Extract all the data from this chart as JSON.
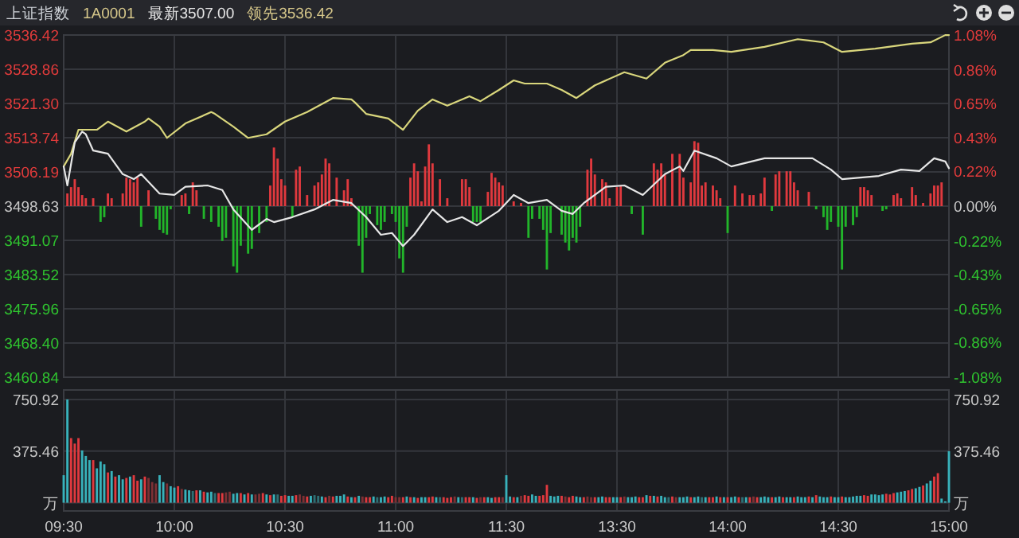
{
  "chart_data": [
    {
      "type": "line",
      "title": "上证指数",
      "subtitle": "1A0001",
      "annotations": [
        "最新3507.00",
        "领先3536.42"
      ],
      "categories": [
        null,
        null,
        null,
        null,
        null,
        null,
        null,
        null,
        null,
        null,
        null,
        null,
        null,
        null,
        null,
        null,
        null,
        null,
        null,
        null,
        null,
        null,
        null,
        null,
        null,
        null,
        null,
        null,
        null,
        null,
        null,
        null,
        null,
        null,
        null,
        null,
        null,
        null,
        null,
        null,
        null,
        null,
        null,
        null,
        null,
        null,
        null,
        null,
        null,
        null,
        null,
        null,
        null,
        null,
        null,
        null,
        null,
        null,
        null,
        null,
        null,
        null,
        null,
        null,
        null,
        null,
        null,
        null,
        null,
        null,
        null,
        null,
        null,
        null,
        null,
        null,
        null,
        null,
        null,
        null,
        null,
        null,
        null,
        null,
        null,
        null,
        null,
        null,
        null,
        null,
        null,
        null,
        null,
        null,
        null,
        null,
        null,
        null,
        null,
        null,
        null,
        null,
        null,
        null,
        null,
        null,
        null,
        null,
        null,
        null,
        null,
        null,
        null,
        null,
        null,
        null,
        null,
        null,
        null,
        null,
        null,
        null,
        null,
        null,
        null,
        null,
        null,
        null,
        null,
        null,
        null,
        null,
        null,
        null,
        null,
        null,
        null,
        null,
        null,
        null,
        null,
        null,
        null,
        null,
        null,
        null,
        null,
        null,
        null,
        null,
        null,
        null,
        null,
        null,
        null,
        null,
        null,
        null,
        null,
        null,
        null,
        null,
        null,
        null,
        null,
        null,
        null,
        null,
        null,
        null,
        null,
        null,
        null,
        null,
        null,
        null,
        null,
        null,
        null,
        null,
        null,
        null,
        null,
        null,
        null,
        null,
        null,
        null,
        null,
        null,
        null,
        null,
        null,
        null,
        null,
        null,
        null,
        null,
        null,
        null,
        null,
        null,
        null,
        null,
        null,
        null,
        null,
        null,
        null,
        null,
        null,
        null,
        null,
        null,
        null,
        null,
        null,
        null,
        null,
        null,
        null,
        null,
        null,
        null,
        null,
        null,
        null,
        null,
        null,
        null,
        null,
        null,
        null,
        null,
        null,
        null,
        null,
        null,
        null,
        null,
        null
      ],
      "ylim": [
        3460.84,
        3536.42
      ],
      "yticks": [
        3536.42,
        3528.86,
        {
          "value": 3521.3,
          "label": "3521.30"
        },
        3513.74,
        3506.19,
        3498.63,
        3491.07,
        3483.52,
        3475.96,
        {
          "value": 3468.4,
          "label": "3468.40"
        },
        3460.84
      ],
      "y2lim": [
        -1.08,
        1.08
      ],
      "y2ticks": [
        {
          "value": 1.08,
          "label": "1.08%"
        },
        {
          "value": 0.86,
          "label": "0.86%"
        },
        {
          "value": 0.65,
          "label": "0.65%"
        },
        {
          "value": 0.43,
          "label": "0.43%"
        },
        {
          "value": 0.22,
          "label": "0.22%"
        },
        {
          "value": 0,
          "label": "0.00%"
        },
        {
          "value": -0.22,
          "label": "-0.22%"
        },
        {
          "value": -0.43,
          "label": "-0.43%"
        },
        {
          "value": -0.65,
          "label": "-0.65%"
        },
        {
          "value": -0.86,
          "label": "-0.86%"
        },
        {
          "value": -1.08,
          "label": "-1.08%"
        }
      ],
      "tick_labels": "y",
      "grid": true,
      "series": [
        {
          "type": "bar",
          "axis": "y2",
          "color": "#e0393e",
          "values": [
            null,
            0.08,
            0.12,
            0.17,
            0.12,
            0.07,
            0.05,
            null,
            0.05,
            null,
            null,
            null,
            0.08,
            0.05,
            null,
            null,
            0.08,
            0.18,
            0.17,
            0.15,
            0.18,
            null,
            null,
            0.1,
            null,
            null,
            null,
            null,
            null,
            null,
            null,
            null,
            0.07,
            0.08,
            null,
            0.15,
            0.1,
            null,
            null,
            null,
            null,
            null,
            null,
            null,
            null,
            null,
            null,
            null,
            null,
            null,
            null,
            null,
            null,
            null,
            null,
            null,
            0.13,
            0.37,
            0.3,
            0.17,
            0.13,
            null,
            null,
            0.23,
            0.25,
            null,
            0.07,
            null,
            0.13,
            0.15,
            0.2,
            0.3,
            0.27,
            null,
            0.18,
            null,
            0.1,
            0.17,
            0.05,
            null,
            null,
            null,
            null,
            null,
            null,
            null,
            null,
            null,
            null,
            null,
            null,
            null,
            null,
            null,
            0.18,
            0.27,
            0.22,
            0.03,
            0.25,
            0.39,
            0.27,
            null,
            0.17,
            null,
            0.05,
            null,
            null,
            null,
            0.17,
            0.17,
            0.12,
            null,
            null,
            null,
            null,
            0.09,
            0.21,
            0.18,
            0.15,
            0.13,
            null,
            null,
            0.03,
            null,
            0.02,
            null,
            null,
            null,
            null,
            null,
            null,
            null,
            null,
            null,
            null,
            null,
            null,
            null,
            null,
            null,
            null,
            null,
            0.23,
            0.3,
            0.2,
            null,
            0.17,
            0.15,
            0.05,
            null,
            0.12,
            0.13,
            null,
            null,
            null,
            null,
            null,
            null,
            null,
            null,
            0.27,
            0.23,
            0.27,
            0.2,
            null,
            0.33,
            null,
            0.33,
            0.18,
            null,
            0.15,
            0.41,
            0.4,
            0.13,
            0.15,
            null,
            0.13,
            0.1,
            0.05,
            null,
            null,
            null,
            0.13,
            null,
            0.08,
            null,
            0.07,
            0.07,
            null,
            0.08,
            0.18,
            null,
            null,
            0.2,
            0.22,
            null,
            0.22,
            0.22,
            0.15,
            0.1,
            null,
            null,
            0.09,
            null,
            null,
            null,
            null,
            null,
            null,
            null,
            null,
            null,
            null,
            null,
            null,
            null,
            0.12,
            0.12,
            0.1,
            0.07,
            null,
            null,
            null,
            null,
            null,
            0.07,
            0.08,
            0.05,
            null,
            null,
            0.12,
            0.07,
            null,
            0.02,
            null,
            0.08,
            0.13,
            0.13,
            0.15,
            null,
            null
          ]
        },
        {
          "type": "bar",
          "axis": "y2",
          "color": "#22b52a",
          "values": [
            null,
            null,
            null,
            null,
            null,
            null,
            null,
            null,
            null,
            null,
            -0.1,
            -0.07,
            null,
            null,
            null,
            null,
            null,
            null,
            null,
            null,
            null,
            -0.13,
            null,
            null,
            null,
            -0.08,
            -0.15,
            -0.17,
            -0.18,
            -0.02,
            null,
            null,
            null,
            null,
            -0.05,
            null,
            null,
            null,
            -0.08,
            null,
            -0.1,
            null,
            -0.13,
            -0.22,
            -0.2,
            null,
            -0.38,
            -0.42,
            -0.25,
            null,
            -0.3,
            -0.27,
            null,
            -0.17,
            null,
            -0.1,
            null,
            null,
            null,
            null,
            null,
            null,
            -0.07,
            null,
            null,
            null,
            null,
            null,
            null,
            null,
            null,
            null,
            null,
            null,
            null,
            null,
            null,
            null,
            null,
            null,
            -0.25,
            -0.42,
            -0.2,
            -0.05,
            null,
            -0.12,
            -0.15,
            -0.1,
            null,
            -0.05,
            -0.1,
            -0.33,
            -0.42,
            -0.13,
            null,
            null,
            null,
            null,
            null,
            null,
            null,
            null,
            null,
            null,
            null,
            null,
            null,
            null,
            null,
            null,
            null,
            -0.1,
            -0.1,
            -0.1,
            null,
            null,
            null,
            null,
            null,
            null,
            null,
            null,
            null,
            null,
            null,
            null,
            -0.2,
            -0.08,
            null,
            -0.08,
            -0.15,
            -0.4,
            -0.17,
            null,
            null,
            -0.18,
            -0.23,
            -0.28,
            -0.2,
            -0.23,
            -0.13,
            null,
            null,
            null,
            null,
            null,
            null,
            null,
            null,
            null,
            null,
            null,
            null,
            null,
            -0.05,
            null,
            null,
            -0.18,
            null,
            null,
            null,
            null,
            null,
            null,
            null,
            null,
            null,
            null,
            null,
            null,
            null,
            null,
            null,
            null,
            null,
            null,
            null,
            null,
            null,
            null,
            -0.17,
            null,
            null,
            null,
            null,
            null,
            null,
            null,
            null,
            null,
            null,
            null,
            -0.03,
            null,
            null,
            null,
            null,
            null,
            null,
            null,
            null,
            null,
            null,
            null,
            -0.02,
            null,
            -0.07,
            -0.15,
            -0.1,
            null,
            -0.13,
            -0.4,
            -0.13,
            null,
            -0.12,
            -0.07,
            null,
            null,
            null,
            null,
            null,
            null,
            -0.03,
            -0.02,
            null,
            null,
            null,
            null,
            null,
            null,
            null,
            null,
            null,
            null,
            null,
            null,
            null,
            null,
            null,
            null,
            null
          ]
        },
        {
          "color": "#d9d67c",
          "values": [
            3507.4,
            null,
            3510.2,
            null,
            3515.5,
            null,
            null,
            null,
            null,
            3515.5,
            null,
            null,
            3517.3,
            null,
            null,
            null,
            null,
            3515.1,
            null,
            null,
            null,
            null,
            3517.3,
            3518.0,
            null,
            null,
            3516.2,
            null,
            3513.7,
            null,
            null,
            null,
            null,
            3516.9,
            null,
            null,
            null,
            null,
            null,
            null,
            3519.4,
            3519.0,
            null,
            null,
            null,
            null,
            3516.2,
            null,
            null,
            null,
            3513.7,
            null,
            null,
            null,
            null,
            3514.5,
            null,
            null,
            null,
            null,
            3517.3,
            null,
            null,
            null,
            null,
            null,
            3519.4,
            null,
            null,
            null,
            null,
            null,
            null,
            3522.5,
            null,
            null,
            null,
            null,
            3522.2,
            3521.5,
            null,
            null,
            3519.0,
            null,
            null,
            null,
            null,
            null,
            3518.0,
            null,
            null,
            null,
            3515.5,
            null,
            null,
            null,
            3519.7,
            null,
            null,
            null,
            3522.2,
            null,
            null,
            null,
            3520.8,
            null,
            null,
            null,
            null,
            null,
            3522.9,
            null,
            null,
            3521.8,
            null,
            null,
            null,
            null,
            3524.3,
            null,
            null,
            null,
            3526.4,
            null,
            null,
            3525.7,
            null,
            null,
            null,
            null,
            null,
            3525.7,
            null,
            null,
            null,
            3524.3,
            null,
            null,
            null,
            3522.5,
            null,
            null,
            null,
            null,
            3525.3,
            null,
            null,
            null,
            null,
            null,
            null,
            null,
            3528.2,
            null,
            null,
            null,
            null,
            null,
            3526.8,
            null,
            null,
            null,
            null,
            3530.3,
            null,
            null,
            null,
            null,
            3532.0,
            null,
            3533.1,
            null,
            null,
            null,
            null,
            null,
            3533.1,
            null,
            null,
            null,
            null,
            3532.7,
            null,
            null,
            null,
            null,
            null,
            null,
            null,
            null,
            3533.8,
            null,
            null,
            null,
            null,
            null,
            null,
            null,
            null,
            3535.5,
            null,
            null,
            null,
            null,
            null,
            null,
            3534.8,
            null,
            null,
            null,
            null,
            3532.7,
            null,
            null,
            null,
            null,
            null,
            null,
            null,
            null,
            3533.4,
            null,
            null,
            null,
            null,
            null,
            null,
            null,
            null,
            null,
            3534.5,
            null,
            null,
            null,
            null,
            3534.8,
            null,
            null,
            null,
            3536.4,
            3536.4
          ]
        },
        {
          "color": "#e6e6e6",
          "values": [
            3507.4,
            3503.2,
            null,
            3512.7,
            null,
            3515.1,
            3514.5,
            null,
            3510.9,
            null,
            null,
            null,
            3510.2,
            null,
            null,
            null,
            3505.7,
            null,
            null,
            3504.6,
            null,
            3505.7,
            null,
            null,
            null,
            null,
            3501.4,
            null,
            null,
            null,
            3501.1,
            null,
            null,
            3502.9,
            null,
            null,
            null,
            null,
            null,
            3503.2,
            null,
            null,
            null,
            3502.2,
            null,
            null,
            3497.9,
            null,
            null,
            null,
            null,
            3493.4,
            null,
            null,
            null,
            3495.8,
            null,
            3495.1,
            null,
            null,
            null,
            null,
            3496.2,
            null,
            null,
            null,
            null,
            null,
            3497.9,
            null,
            null,
            null,
            null,
            3500.0,
            null,
            null,
            null,
            null,
            3499.3,
            null,
            null,
            null,
            3496.2,
            null,
            null,
            null,
            3492.3,
            null,
            null,
            3492.7,
            null,
            null,
            3489.8,
            null,
            null,
            3492.3,
            null,
            null,
            null,
            null,
            3497.9,
            null,
            null,
            null,
            3495.1,
            null,
            null,
            null,
            3496.2,
            null,
            null,
            null,
            3494.4,
            null,
            null,
            null,
            null,
            null,
            3497.6,
            null,
            null,
            null,
            3501.1,
            null,
            null,
            null,
            3499.3,
            null,
            null,
            null,
            null,
            3500.0,
            null,
            null,
            null,
            3497.6,
            null,
            null,
            3496.9,
            null,
            null,
            3499.3,
            null,
            null,
            null,
            null,
            null,
            3502.9,
            null,
            null,
            null,
            null,
            3503.2,
            null,
            null,
            null,
            null,
            3501.1,
            null,
            null,
            null,
            null,
            null,
            3505.7,
            null,
            null,
            null,
            3507.4,
            3506.4,
            null,
            null,
            3510.9,
            null,
            null,
            null,
            null,
            null,
            3509.2,
            null,
            null,
            null,
            3507.4,
            null,
            null,
            null,
            null,
            null,
            null,
            null,
            null,
            3509.2,
            null,
            null,
            null,
            null,
            null,
            null,
            null,
            null,
            null,
            null,
            null,
            null,
            3509.2,
            null,
            null,
            null,
            null,
            3506.7,
            null,
            null,
            3504.6,
            null,
            null,
            null,
            null,
            null,
            null,
            null,
            null,
            null,
            3505.3,
            null,
            null,
            null,
            null,
            null,
            3506.7,
            null,
            null,
            null,
            null,
            3506.4,
            null,
            null,
            null,
            3509.2,
            null,
            null,
            3508.5,
            3507.0
          ]
        }
      ]
    },
    {
      "type": "bar",
      "categories": [
        "09:30",
        null,
        null,
        null,
        null,
        null,
        null,
        null,
        null,
        null,
        null,
        null,
        null,
        null,
        null,
        null,
        null,
        null,
        null,
        null,
        null,
        null,
        null,
        null,
        null,
        null,
        null,
        null,
        null,
        null,
        "10:00",
        null,
        null,
        null,
        null,
        null,
        null,
        null,
        null,
        null,
        null,
        null,
        null,
        null,
        null,
        null,
        null,
        null,
        null,
        null,
        null,
        null,
        null,
        null,
        null,
        null,
        null,
        null,
        null,
        null,
        "10:30",
        null,
        null,
        null,
        null,
        null,
        null,
        null,
        null,
        null,
        null,
        null,
        null,
        null,
        null,
        null,
        null,
        null,
        null,
        null,
        null,
        null,
        null,
        null,
        null,
        null,
        null,
        null,
        null,
        null,
        "11:00",
        null,
        null,
        null,
        null,
        null,
        null,
        null,
        null,
        null,
        null,
        null,
        null,
        null,
        null,
        null,
        null,
        null,
        null,
        null,
        null,
        null,
        null,
        null,
        null,
        null,
        null,
        null,
        null,
        null,
        "11:30",
        null,
        null,
        null,
        null,
        null,
        null,
        null,
        null,
        null,
        null,
        null,
        null,
        null,
        null,
        null,
        null,
        null,
        null,
        null,
        null,
        null,
        null,
        null,
        null,
        null,
        null,
        null,
        null,
        null,
        "13:30",
        null,
        null,
        null,
        null,
        null,
        null,
        null,
        null,
        null,
        null,
        null,
        null,
        null,
        null,
        null,
        null,
        null,
        null,
        null,
        null,
        null,
        null,
        null,
        null,
        null,
        null,
        null,
        null,
        null,
        "14:00",
        null,
        null,
        null,
        null,
        null,
        null,
        null,
        null,
        null,
        null,
        null,
        null,
        null,
        null,
        null,
        null,
        null,
        null,
        null,
        null,
        null,
        null,
        null,
        null,
        null,
        null,
        null,
        null,
        null,
        "14:30",
        null,
        null,
        null,
        null,
        null,
        null,
        null,
        null,
        null,
        null,
        null,
        null,
        null,
        null,
        null,
        null,
        null,
        null,
        null,
        null,
        null,
        null,
        null,
        null,
        null,
        null,
        null,
        null,
        null,
        "15:00"
      ],
      "ylim": [
        -60,
        820
      ],
      "yticks": [
        750.92,
        375.46,
        {
          "value": 0,
          "label": "万"
        }
      ],
      "y2lim": [
        -60,
        820
      ],
      "y2ticks": [
        750.92,
        375.46,
        {
          "value": 0,
          "label": "万"
        }
      ],
      "grid": true,
      "series": [
        {
          "values": [
            200,
            750.92,
            470,
            430,
            470,
            380,
            340,
            310,
            310,
            250,
            300,
            280,
            220,
            230,
            190,
            200,
            170,
            180,
            190,
            200,
            160,
            170,
            190,
            180,
            150,
            140,
            200,
            150,
            140,
            120,
            110,
            120,
            100,
            95,
            90,
            85,
            90,
            90,
            80,
            75,
            80,
            70,
            70,
            70,
            75,
            80,
            65,
            70,
            70,
            60,
            70,
            60,
            60,
            65,
            70,
            60,
            55,
            60,
            60,
            50,
            55,
            50,
            50,
            55,
            60,
            50,
            45,
            50,
            55,
            50,
            45,
            40,
            50,
            45,
            50,
            50,
            60,
            45,
            40,
            40,
            50,
            45,
            40,
            40,
            45,
            40,
            40,
            45,
            40,
            50,
            40,
            40,
            40,
            45,
            40,
            40,
            35,
            40,
            40,
            40,
            45,
            40,
            40,
            40,
            35,
            40,
            45,
            40,
            40,
            40,
            40,
            40,
            35,
            40,
            40,
            40,
            35,
            40,
            40,
            40,
            200,
            45,
            40,
            40,
            50,
            55,
            50,
            60,
            50,
            50,
            55,
            130,
            50,
            45,
            50,
            50,
            45,
            40,
            50,
            45,
            40,
            40,
            45,
            40,
            40,
            40,
            45,
            40,
            40,
            40,
            40,
            40,
            45,
            40,
            40,
            45,
            40,
            40,
            55,
            50,
            50,
            45,
            50,
            40,
            40,
            45,
            40,
            40,
            40,
            45,
            40,
            40,
            45,
            40,
            40,
            40,
            40,
            45,
            40,
            40,
            40,
            40,
            45,
            40,
            40,
            40,
            40,
            45,
            40,
            40,
            45,
            40,
            40,
            40,
            45,
            40,
            40,
            40,
            40,
            45,
            40,
            40,
            45,
            40,
            55,
            45,
            40,
            40,
            45,
            40,
            40,
            45,
            40,
            40,
            45,
            50,
            50,
            55,
            50,
            60,
            60,
            55,
            60,
            65,
            60,
            70,
            75,
            80,
            85,
            90,
            100,
            105,
            115,
            125,
            140,
            160,
            190,
            215,
            30,
            10,
            375
          ],
          "colors": [
            "#38b2bb",
            "#38b2bb",
            "#e0393e",
            "#e0393e",
            "#e0393e",
            "#38b2bb",
            "#38b2bb",
            "#38b2bb",
            "#e0393e",
            "#38b2bb",
            "#38b2bb",
            "#38b2bb",
            "#e0393e",
            "#38b2bb",
            "#e0393e",
            "#38b2bb",
            "#38b2bb",
            "#e0393e",
            "#38b2bb",
            "#e0393e",
            "#e0393e",
            "#38b2bb",
            "#e0393e",
            "#7d3034",
            "#7d3034",
            "#7d3034",
            "#38b2bb",
            "#38b2bb",
            "#7d3034",
            "#38b2bb",
            "#38b2bb",
            "#e0393e",
            "#7d3034",
            "#38b2bb",
            "#38b2bb",
            "#2d6f74",
            "#e0393e",
            "#38b2bb",
            "#e0393e",
            "#38b2bb",
            "#38b2bb",
            "#2d6f74",
            "#e0393e",
            "#e0393e",
            "#7d3034",
            "#7d3034",
            "#38b2bb",
            "#38b2bb",
            "#e0393e",
            "#38b2bb",
            "#e0393e",
            "#38b2bb",
            "#7d3034",
            "#7d3034",
            "#e0393e",
            "#38b2bb",
            "#e0393e",
            "#38b2bb",
            "#2d6f74",
            "#e0393e",
            "#e0393e",
            "#38b2bb",
            "#38b2bb",
            "#e0393e",
            "#7d3034",
            "#7d3034",
            "#e0393e",
            "#38b2bb",
            "#2d6f74",
            "#2d6f74",
            "#38b2bb",
            "#e0393e",
            "#7d3034",
            "#e0393e",
            "#38b2bb",
            "#38b2bb",
            "#38b2bb",
            "#e0393e",
            "#38b2bb",
            "#e0393e",
            "#38b2bb",
            "#7d3034",
            "#e0393e",
            "#e0393e",
            "#38b2bb",
            "#2d6f74",
            "#38b2bb",
            "#38b2bb",
            "#e0393e",
            "#e0393e",
            "#7d3034",
            "#7d3034",
            "#e0393e",
            "#38b2bb",
            "#e0393e",
            "#38b2bb",
            "#e0393e",
            "#38b2bb",
            "#38b2bb",
            "#e0393e",
            "#e0393e",
            "#38b2bb",
            "#2d6f74",
            "#e0393e",
            "#e0393e",
            "#e0393e",
            "#7d3034",
            "#38b2bb",
            "#2d6f74",
            "#e0393e",
            "#e0393e",
            "#38b2bb",
            "#e0393e",
            "#7d3034",
            "#e0393e",
            "#38b2bb",
            "#38b2bb",
            "#e0393e",
            "#e0393e",
            "#7d3034",
            "#38b2bb",
            "#38b2bb",
            "#e0393e",
            "#38b2bb",
            "#7d3034",
            "#e0393e",
            "#e0393e",
            "#38b2bb",
            "#38b2bb",
            "#e0393e",
            "#e0393e",
            "#e0393e",
            "#38b2bb",
            "#38b2bb",
            "#38b2bb",
            "#e0393e",
            "#7d3034",
            "#e0393e",
            "#e0393e",
            "#38b2bb",
            "#38b2bb",
            "#e0393e",
            "#7d3034",
            "#7d3034",
            "#e0393e",
            "#38b2bb",
            "#38b2bb",
            "#e0393e",
            "#e0393e",
            "#38b2bb",
            "#38b2bb",
            "#e0393e",
            "#7d3034",
            "#38b2bb",
            "#38b2bb",
            "#38b2bb",
            "#e0393e",
            "#e0393e",
            "#38b2bb",
            "#e0393e",
            "#38b2bb",
            "#e0393e",
            "#38b2bb",
            "#38b2bb",
            "#2d6f74",
            "#e0393e",
            "#7d3034",
            "#38b2bb",
            "#38b2bb",
            "#38b2bb",
            "#e0393e",
            "#38b2bb",
            "#38b2bb",
            "#2d6f74",
            "#38b2bb",
            "#e0393e",
            "#e0393e",
            "#38b2bb",
            "#e0393e",
            "#38b2bb",
            "#e0393e",
            "#38b2bb",
            "#38b2bb",
            "#e0393e",
            "#2d6f74",
            "#38b2bb",
            "#e0393e",
            "#7d3034",
            "#e0393e",
            "#38b2bb",
            "#38b2bb",
            "#38b2bb",
            "#e0393e",
            "#38b2bb",
            "#38b2bb",
            "#e0393e",
            "#38b2bb",
            "#38b2bb",
            "#e0393e",
            "#38b2bb",
            "#38b2bb",
            "#38b2bb",
            "#e0393e",
            "#38b2bb",
            "#e0393e",
            "#38b2bb",
            "#38b2bb",
            "#38b2bb",
            "#e0393e",
            "#38b2bb",
            "#38b2bb",
            "#e0393e",
            "#38b2bb",
            "#38b2bb",
            "#38b2bb",
            "#38b2bb",
            "#38b2bb",
            "#e0393e",
            "#e0393e",
            "#38b2bb",
            "#38b2bb",
            "#38b2bb",
            "#38b2bb",
            "#e0393e",
            "#e0393e",
            "#e0393e",
            "#38b2bb",
            "#38b2bb",
            "#38b2bb",
            "#e0393e",
            "#e0393e",
            "#38b2bb",
            "#38b2bb",
            "#e0393e",
            "#38b2bb",
            "#38b2bb",
            "#e0393e",
            "#e0393e",
            "#38b2bb",
            "#38b2bb",
            "#38b2bb"
          ]
        }
      ]
    }
  ]
}
